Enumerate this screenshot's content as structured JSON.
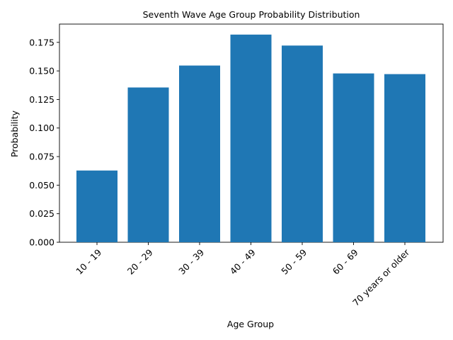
{
  "chart_data": {
    "type": "bar",
    "title": "Seventh Wave Age Group Probability Distribution",
    "xlabel": "Age Group",
    "ylabel": "Probability",
    "categories": [
      "10 - 19",
      "20 - 29",
      "30 - 39",
      "40 - 49",
      "50 - 59",
      "60 - 69",
      "70 years or older"
    ],
    "values": [
      0.0628,
      0.1355,
      0.1547,
      0.1818,
      0.1722,
      0.1478,
      0.1472
    ],
    "ylim": [
      0,
      0.191
    ],
    "yticks": [
      "0.000",
      "0.025",
      "0.050",
      "0.075",
      "0.100",
      "0.125",
      "0.150",
      "0.175"
    ],
    "grid": false,
    "legend": "none",
    "bar_color": "#1f77b4",
    "xtick_rotation": 45
  }
}
